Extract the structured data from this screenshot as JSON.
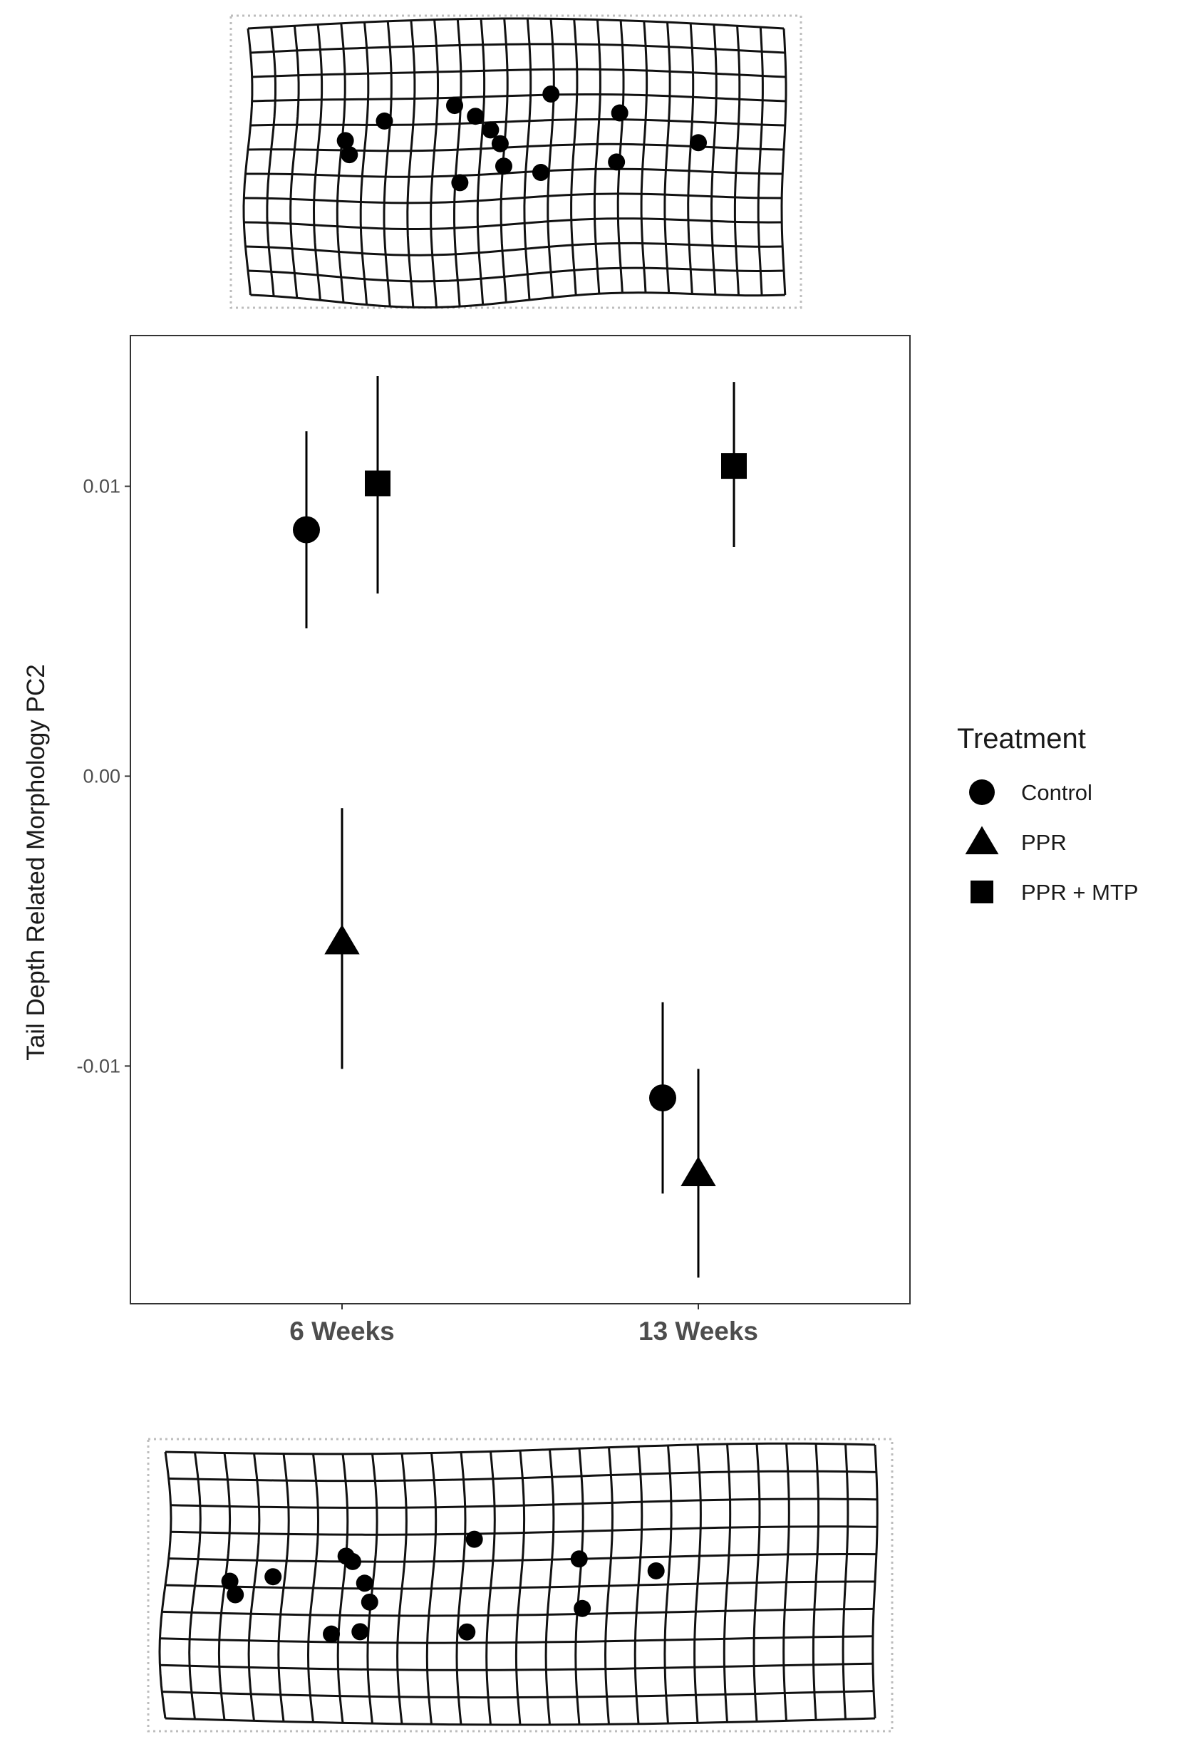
{
  "chart_data": {
    "type": "scatter",
    "title": "",
    "xlabel": "",
    "ylabel": "Tail Depth Related Morphology PC2",
    "categories": [
      "6 Weeks",
      "13 Weeks"
    ],
    "ylim": [
      -0.0182,
      0.0152
    ],
    "yticks": [
      -0.01,
      0.0,
      0.01
    ],
    "ytick_labels": [
      "-0.01",
      "0.00",
      "0.01"
    ],
    "grid": false,
    "legend": {
      "title": "Treatment",
      "placement": "right",
      "entries": [
        {
          "name": "Control",
          "shape": "circle"
        },
        {
          "name": "PPR",
          "shape": "triangle"
        },
        {
          "name": "PPR + MTP",
          "shape": "square"
        }
      ]
    },
    "series": [
      {
        "name": "Control",
        "shape": "circle",
        "points": [
          {
            "category": "6 Weeks",
            "mean": 0.0085,
            "lower": 0.0051,
            "upper": 0.0119
          },
          {
            "category": "13 Weeks",
            "mean": -0.0111,
            "lower": -0.0144,
            "upper": -0.0078
          }
        ]
      },
      {
        "name": "PPR",
        "shape": "triangle",
        "points": [
          {
            "category": "6 Weeks",
            "mean": -0.0057,
            "lower": -0.0101,
            "upper": -0.0011
          },
          {
            "category": "13 Weeks",
            "mean": -0.0137,
            "lower": -0.0173,
            "upper": -0.0101
          }
        ]
      },
      {
        "name": "PPR + MTP",
        "shape": "square",
        "points": [
          {
            "category": "6 Weeks",
            "mean": 0.0101,
            "lower": 0.0063,
            "upper": 0.0138
          },
          {
            "category": "13 Weeks",
            "mean": 0.0107,
            "lower": 0.0079,
            "upper": 0.0136
          }
        ]
      }
    ],
    "colors": {
      "marker": "#000000",
      "axis_text": "#4d4d4d",
      "frame": "#333333",
      "grid_frame": "#bdbdbd"
    },
    "deformation_grids": [
      {
        "position": "top",
        "landmarks": 16
      },
      {
        "position": "bottom",
        "landmarks": 16
      }
    ]
  }
}
